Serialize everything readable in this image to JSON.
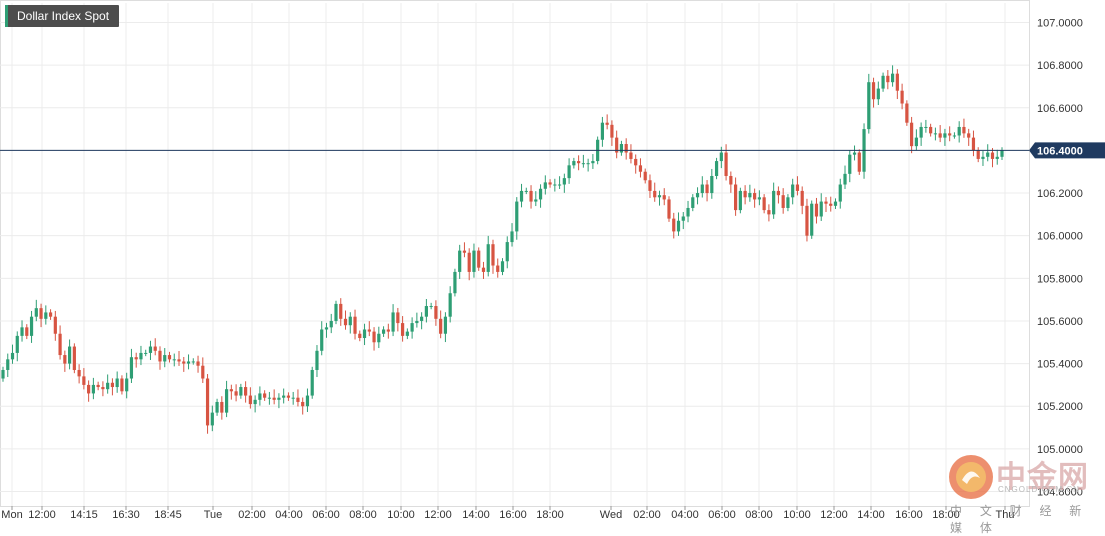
{
  "title": "Dollar Index Spot",
  "current_price_label": "106.4000",
  "colors": {
    "up": "#2e9e74",
    "down": "#d75442",
    "price_line": "#1f3a60",
    "grid": "#ececec",
    "axis_text": "#333333"
  },
  "watermark": {
    "name": "中金网",
    "domain": "CNGOLD.COM.CN",
    "sub": "中 文 财 经 新 媒 体"
  },
  "chart_data": {
    "type": "candlestick",
    "title": "Dollar Index Spot",
    "ylim": [
      104.8,
      107.1
    ],
    "y_ticks": [
      "107.0000",
      "106.8000",
      "106.6000",
      "106.4000",
      "106.2000",
      "106.0000",
      "105.8000",
      "105.6000",
      "105.4000",
      "105.2000",
      "105.0000",
      "104.8000"
    ],
    "x_ticks": [
      "Mon",
      "12:00",
      "14:15",
      "16:30",
      "18:45",
      "Tue",
      "02:00",
      "04:00",
      "06:00",
      "08:00",
      "10:00",
      "12:00",
      "14:00",
      "16:00",
      "18:00",
      "Wed",
      "02:00",
      "04:00",
      "06:00",
      "08:00",
      "10:00",
      "12:00",
      "14:00",
      "16:00",
      "18:00",
      "Thu"
    ],
    "current_price": 106.4,
    "grid": true,
    "closes": [
      105.37,
      105.42,
      105.45,
      105.53,
      105.57,
      105.53,
      105.62,
      105.66,
      105.61,
      105.64,
      105.62,
      105.54,
      105.44,
      105.4,
      105.48,
      105.37,
      105.34,
      105.3,
      105.26,
      105.3,
      105.29,
      105.28,
      105.31,
      105.29,
      105.33,
      105.27,
      105.33,
      105.43,
      105.42,
      105.45,
      105.45,
      105.48,
      105.46,
      105.41,
      105.44,
      105.42,
      105.42,
      105.41,
      105.4,
      105.41,
      105.41,
      105.39,
      105.33,
      105.11,
      105.17,
      105.22,
      105.17,
      105.28,
      105.27,
      105.25,
      105.29,
      105.25,
      105.21,
      105.23,
      105.26,
      105.24,
      105.24,
      105.23,
      105.24,
      105.25,
      105.24,
      105.24,
      105.22,
      105.2,
      105.25,
      105.37,
      105.46,
      105.56,
      105.57,
      105.6,
      105.68,
      105.61,
      105.58,
      105.62,
      105.54,
      105.52,
      105.56,
      105.55,
      105.5,
      105.54,
      105.56,
      105.55,
      105.64,
      105.59,
      105.53,
      105.55,
      105.59,
      105.6,
      105.62,
      105.67,
      105.67,
      105.61,
      105.54,
      105.62,
      105.73,
      105.83,
      105.93,
      105.92,
      105.83,
      105.93,
      105.85,
      105.83,
      105.96,
      105.86,
      105.83,
      105.88,
      105.97,
      106.02,
      106.16,
      106.21,
      106.21,
      106.16,
      106.17,
      106.22,
      106.25,
      106.24,
      106.24,
      106.24,
      106.27,
      106.33,
      106.35,
      106.34,
      106.34,
      106.34,
      106.35,
      106.45,
      106.53,
      106.52,
      106.46,
      106.39,
      106.43,
      106.39,
      106.36,
      106.33,
      106.3,
      106.26,
      106.21,
      106.18,
      106.19,
      106.17,
      106.08,
      106.02,
      106.07,
      106.09,
      106.13,
      106.18,
      106.2,
      106.24,
      106.2,
      106.28,
      106.35,
      106.39,
      106.28,
      106.24,
      106.12,
      106.21,
      106.18,
      106.2,
      106.17,
      106.18,
      106.12,
      106.1,
      106.21,
      106.19,
      106.13,
      106.18,
      106.24,
      106.21,
      106.14,
      106.0,
      106.15,
      106.09,
      106.16,
      106.15,
      106.14,
      106.16,
      106.24,
      106.29,
      106.38,
      106.39,
      106.3,
      106.5,
      106.72,
      106.64,
      106.69,
      106.75,
      106.72,
      106.76,
      106.68,
      106.62,
      106.53,
      106.42,
      106.46,
      106.51,
      106.51,
      106.48,
      106.48,
      106.46,
      106.48,
      106.47,
      106.47,
      106.51,
      106.48,
      106.46,
      106.4,
      106.36,
      106.37,
      106.39,
      106.36,
      106.37,
      106.4
    ]
  }
}
